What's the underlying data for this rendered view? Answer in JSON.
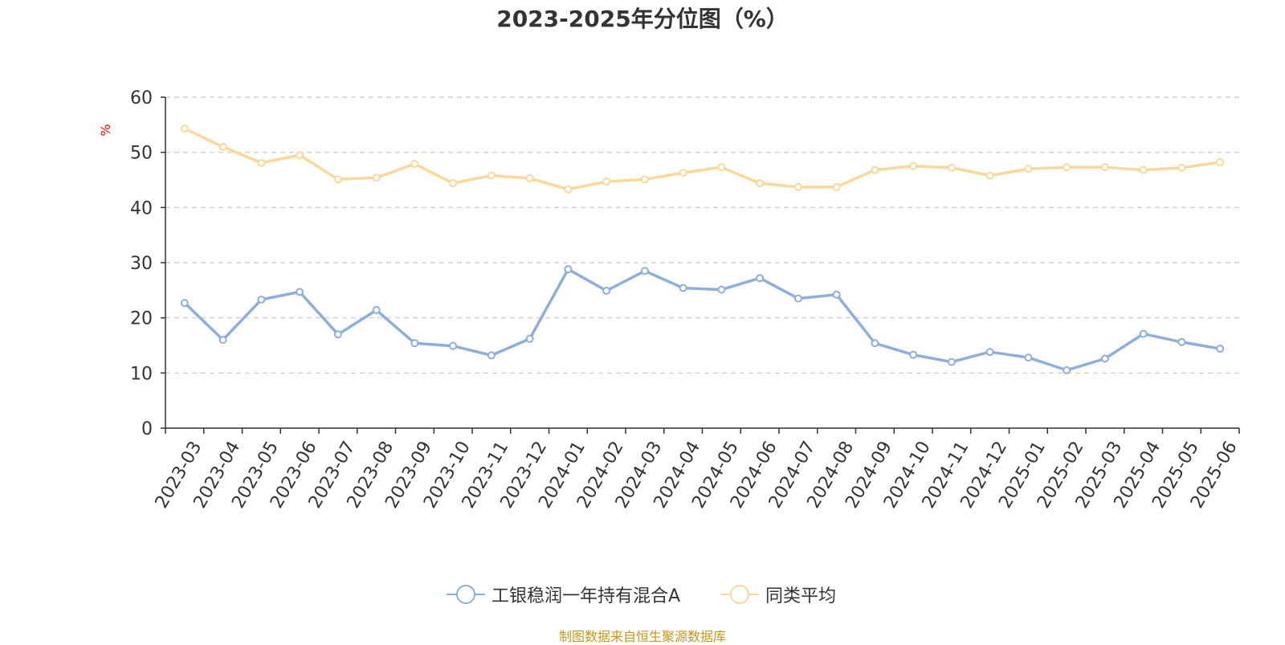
{
  "chart_data": {
    "type": "line",
    "title": "2023-2025年分位图（%）",
    "ylabel": "%",
    "ylim": [
      0,
      60
    ],
    "yticks": [
      0,
      10,
      20,
      30,
      40,
      50,
      60
    ],
    "grid": true,
    "legend_position": "bottom",
    "categories": [
      "2023-03",
      "2023-04",
      "2023-05",
      "2023-06",
      "2023-07",
      "2023-08",
      "2023-09",
      "2023-10",
      "2023-11",
      "2023-12",
      "2024-01",
      "2024-02",
      "2024-03",
      "2024-04",
      "2024-05",
      "2024-06",
      "2024-07",
      "2024-08",
      "2024-09",
      "2024-10",
      "2024-11",
      "2024-12",
      "2025-01",
      "2025-02",
      "2025-03",
      "2025-04",
      "2025-05",
      "2025-06"
    ],
    "series": [
      {
        "name": "工银稳润一年持有混合A",
        "color": "#8eaedb",
        "values": [
          22.7,
          16.0,
          23.3,
          24.7,
          17.0,
          21.4,
          15.4,
          14.9,
          13.2,
          16.2,
          28.8,
          24.9,
          28.5,
          25.4,
          25.1,
          27.2,
          23.5,
          24.2,
          15.4,
          13.3,
          12.0,
          13.8,
          12.8,
          10.5,
          12.6,
          17.1,
          15.6,
          14.4
        ]
      },
      {
        "name": "同类平均",
        "color": "#fbd89a",
        "values": [
          54.3,
          51.0,
          48.1,
          49.5,
          45.1,
          45.4,
          47.9,
          44.4,
          45.8,
          45.3,
          43.3,
          44.7,
          45.1,
          46.3,
          47.3,
          44.4,
          43.7,
          43.7,
          46.8,
          47.5,
          47.2,
          45.8,
          47.0,
          47.3,
          47.3,
          46.8,
          47.2,
          48.2
        ]
      }
    ]
  },
  "source": "制图数据来自恒生聚源数据库"
}
